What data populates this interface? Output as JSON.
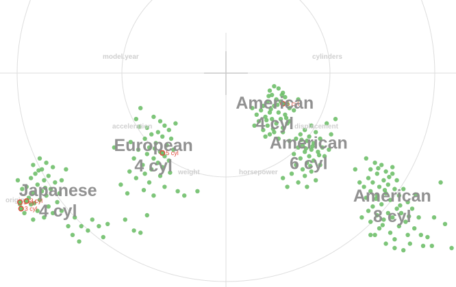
{
  "chart_data": {
    "type": "scatter",
    "colors": {
      "point": "#6fbf6a",
      "highlight": "#e04b3c",
      "ring": "#dddddd",
      "axis": "#c8c8c8",
      "label": "#8c8c8c",
      "axis_label": "#cfcfcf"
    },
    "axis_labels": [
      "model.year",
      "cylinders",
      "acceleration",
      "displacement",
      "weight",
      "horsepower",
      "origin"
    ],
    "clusters": [
      {
        "name": "American\n4 cyl",
        "label_lines": [
          "American",
          "4 cyl"
        ],
        "points": [
          [
            2.2,
            3.4
          ],
          [
            2.4,
            3.3
          ],
          [
            2.0,
            3.2
          ],
          [
            2.6,
            3.1
          ],
          [
            2.1,
            3.0
          ],
          [
            2.7,
            2.9
          ],
          [
            2.3,
            2.8
          ],
          [
            1.9,
            2.7
          ],
          [
            2.5,
            2.7
          ],
          [
            2.8,
            2.6
          ],
          [
            1.7,
            2.5
          ],
          [
            2.2,
            2.5
          ],
          [
            2.9,
            2.4
          ],
          [
            1.6,
            2.3
          ],
          [
            2.0,
            2.2
          ],
          [
            2.4,
            2.2
          ],
          [
            2.7,
            2.1
          ],
          [
            1.8,
            2.0
          ],
          [
            2.1,
            1.9
          ],
          [
            2.5,
            1.9
          ],
          [
            1.5,
            1.8
          ],
          [
            2.3,
            1.7
          ],
          [
            2.8,
            1.7
          ],
          [
            1.9,
            1.6
          ],
          [
            2.6,
            1.5
          ],
          [
            1.7,
            1.4
          ],
          [
            2.2,
            1.3
          ],
          [
            2.0,
            1.2
          ],
          [
            1.8,
            1.1
          ],
          [
            2.4,
            1.0
          ],
          [
            2.6,
            1.3
          ],
          [
            2.9,
            1.8
          ],
          [
            1.4,
            2.1
          ],
          [
            3.1,
            2.3
          ],
          [
            1.3,
            1.6
          ],
          [
            2.35,
            2.55
          ],
          [
            2.05,
            2.35
          ],
          [
            1.85,
            1.85
          ],
          [
            2.75,
            1.95
          ],
          [
            2.15,
            1.45
          ],
          [
            3.3,
            2.8
          ],
          [
            1.2,
            2.4
          ],
          [
            2.55,
            3.0
          ],
          [
            1.95,
            2.95
          ]
        ],
        "highlight": {
          "text": "5 cyl",
          "point": [
            2.6,
            2.6
          ]
        }
      },
      {
        "name": "European\n4 cyl",
        "label_lines": [
          "European",
          "4 cyl"
        ],
        "points": [
          [
            -3.9,
            2.4
          ],
          [
            -4.1,
            1.9
          ],
          [
            -3.3,
            2.0
          ],
          [
            -3.0,
            1.8
          ],
          [
            -3.6,
            1.5
          ],
          [
            -2.8,
            1.6
          ],
          [
            -3.1,
            1.3
          ],
          [
            -2.6,
            1.4
          ],
          [
            -3.4,
            1.2
          ],
          [
            -2.9,
            1.1
          ],
          [
            -3.7,
            1.0
          ],
          [
            -2.5,
            1.0
          ],
          [
            -3.2,
            0.8
          ],
          [
            -2.7,
            0.7
          ],
          [
            -3.5,
            0.6
          ],
          [
            -4.0,
            0.5
          ],
          [
            -2.4,
            0.5
          ],
          [
            -3.0,
            0.4
          ],
          [
            -3.6,
            0.3
          ],
          [
            -2.8,
            0.2
          ],
          [
            -3.3,
            0.1
          ],
          [
            -4.2,
            0.1
          ],
          [
            -2.6,
            0.0
          ],
          [
            -3.1,
            -0.1
          ],
          [
            -3.8,
            -0.2
          ],
          [
            -2.9,
            -0.3
          ],
          [
            -3.4,
            -0.4
          ],
          [
            -4.4,
            -0.5
          ],
          [
            -3.7,
            -0.6
          ],
          [
            -3.0,
            -0.7
          ],
          [
            -4.1,
            -0.8
          ],
          [
            -3.5,
            -1.0
          ],
          [
            -4.5,
            -1.5
          ],
          [
            -3.3,
            -1.6
          ],
          [
            -2.2,
            -1.4
          ],
          [
            -2.8,
            -1.2
          ],
          [
            -1.3,
            -1.4
          ],
          [
            -1.9,
            -1.6
          ],
          [
            -3.95,
            1.55
          ],
          [
            -4.35,
            0.85
          ],
          [
            -3.25,
            0.55
          ],
          [
            -2.55,
            -0.55
          ],
          [
            -4.8,
            -1.1
          ],
          [
            -5.1,
            0.6
          ],
          [
            -3.75,
            -1.35
          ],
          [
            -2.3,
            1.7
          ]
        ],
        "highlight": {
          "text": "5 cyl",
          "point": [
            -2.9,
            0.35
          ]
        }
      },
      {
        "name": "American\n6 cyl",
        "label_lines": [
          "American",
          "6 cyl"
        ],
        "points": [
          [
            3.9,
            1.6
          ],
          [
            3.6,
            1.4
          ],
          [
            4.1,
            1.3
          ],
          [
            3.4,
            1.2
          ],
          [
            3.8,
            1.1
          ],
          [
            4.3,
            1.0
          ],
          [
            3.2,
            1.0
          ],
          [
            3.7,
            0.9
          ],
          [
            4.0,
            0.8
          ],
          [
            3.5,
            0.7
          ],
          [
            4.4,
            0.6
          ],
          [
            3.3,
            0.6
          ],
          [
            3.9,
            0.5
          ],
          [
            3.6,
            0.4
          ],
          [
            4.2,
            0.4
          ],
          [
            3.1,
            0.3
          ],
          [
            3.8,
            0.2
          ],
          [
            4.5,
            0.2
          ],
          [
            3.4,
            0.1
          ],
          [
            4.0,
            0.0
          ],
          [
            3.7,
            -0.1
          ],
          [
            3.2,
            -0.2
          ],
          [
            4.3,
            -0.2
          ],
          [
            3.5,
            -0.4
          ],
          [
            3.9,
            -0.5
          ],
          [
            3.0,
            -0.6
          ],
          [
            3.6,
            -0.7
          ],
          [
            4.1,
            -0.9
          ],
          [
            3.3,
            -1.0
          ],
          [
            3.7,
            -1.2
          ],
          [
            2.8,
            -1.2
          ],
          [
            4.6,
            1.7
          ],
          [
            5.0,
            1.9
          ],
          [
            4.8,
            1.2
          ],
          [
            3.95,
            0.65
          ],
          [
            3.45,
            0.95
          ],
          [
            4.25,
            0.25
          ],
          [
            3.65,
            0.55
          ],
          [
            3.85,
            -0.25
          ],
          [
            2.9,
            0.9
          ],
          [
            4.7,
            0.5
          ],
          [
            2.6,
            -0.8
          ]
        ]
      },
      {
        "name": "Japanese\n4 cyl",
        "label_lines": [
          "Japanese",
          "4 cyl"
        ],
        "points": [
          [
            -8.5,
            0.1
          ],
          [
            -8.2,
            -0.1
          ],
          [
            -8.8,
            -0.2
          ],
          [
            -7.9,
            -0.3
          ],
          [
            -8.4,
            -0.4
          ],
          [
            -8.7,
            -0.6
          ],
          [
            -8.1,
            -0.7
          ],
          [
            -8.9,
            -0.8
          ],
          [
            -8.3,
            -0.9
          ],
          [
            -7.8,
            -1.0
          ],
          [
            -8.6,
            -1.1
          ],
          [
            -9.1,
            -1.2
          ],
          [
            -8.0,
            -1.3
          ],
          [
            -8.4,
            -1.4
          ],
          [
            -8.8,
            -1.5
          ],
          [
            -9.3,
            -1.3
          ],
          [
            -7.6,
            -1.5
          ],
          [
            -8.2,
            -1.6
          ],
          [
            -9.0,
            -1.7
          ],
          [
            -8.5,
            -1.8
          ],
          [
            -7.7,
            -1.9
          ],
          [
            -8.9,
            -2.0
          ],
          [
            -8.1,
            -2.1
          ],
          [
            -9.4,
            -2.0
          ],
          [
            -8.6,
            -2.3
          ],
          [
            -7.9,
            -2.4
          ],
          [
            -9.2,
            -2.4
          ],
          [
            -8.3,
            -2.6
          ],
          [
            -8.8,
            -2.7
          ],
          [
            -7.5,
            -2.3
          ],
          [
            -7.3,
            -0.4
          ],
          [
            -7.5,
            -0.9
          ],
          [
            -9.5,
            -0.9
          ],
          [
            -8.55,
            -0.45
          ],
          [
            -8.25,
            -1.25
          ],
          [
            -8.75,
            -1.95
          ],
          [
            -6.9,
            -2.6
          ],
          [
            -6.6,
            -3.0
          ],
          [
            -6.3,
            -3.2
          ],
          [
            -7.0,
            -3.4
          ],
          [
            -6.7,
            -3.7
          ],
          [
            -5.8,
            -3.0
          ],
          [
            -5.4,
            -2.9
          ],
          [
            -5.6,
            -3.5
          ],
          [
            -6.1,
            -2.7
          ],
          [
            -7.2,
            -3.0
          ],
          [
            -4.6,
            -2.7
          ],
          [
            -4.2,
            -3.2
          ],
          [
            -3.9,
            -3.3
          ],
          [
            -3.6,
            -2.5
          ]
        ],
        "highlights": [
          {
            "text": "3 cyl",
            "point": [
              -9.4,
              -1.9
            ]
          },
          {
            "text": "3 cyl",
            "point": [
              -9.1,
              -1.85
            ]
          },
          {
            "text": "3 cyl",
            "point": [
              -9.35,
              -2.2
            ]
          }
        ]
      },
      {
        "name": "American\n8 cyl",
        "label_lines": [
          "American",
          "8 cyl"
        ],
        "points": [
          [
            6.4,
            0.1
          ],
          [
            6.8,
            -0.1
          ],
          [
            7.1,
            -0.2
          ],
          [
            6.6,
            -0.4
          ],
          [
            7.3,
            -0.5
          ],
          [
            6.9,
            -0.6
          ],
          [
            7.6,
            -0.6
          ],
          [
            6.5,
            -0.8
          ],
          [
            7.2,
            -0.9
          ],
          [
            7.8,
            -0.9
          ],
          [
            6.7,
            -1.0
          ],
          [
            7.4,
            -1.1
          ],
          [
            6.3,
            -1.2
          ],
          [
            7.0,
            -1.2
          ],
          [
            7.7,
            -1.3
          ],
          [
            8.1,
            -1.3
          ],
          [
            6.6,
            -1.4
          ],
          [
            7.3,
            -1.5
          ],
          [
            6.9,
            -1.6
          ],
          [
            7.9,
            -1.6
          ],
          [
            6.4,
            -1.7
          ],
          [
            7.5,
            -1.8
          ],
          [
            8.3,
            -1.9
          ],
          [
            7.1,
            -2.0
          ],
          [
            6.7,
            -2.1
          ],
          [
            7.8,
            -2.2
          ],
          [
            8.5,
            -2.2
          ],
          [
            6.5,
            -2.3
          ],
          [
            7.4,
            -2.4
          ],
          [
            8.0,
            -2.4
          ],
          [
            6.9,
            -2.5
          ],
          [
            7.6,
            -2.6
          ],
          [
            8.8,
            -2.6
          ],
          [
            7.2,
            -2.7
          ],
          [
            6.6,
            -2.8
          ],
          [
            8.2,
            -2.8
          ],
          [
            7.9,
            -3.0
          ],
          [
            7.0,
            -3.1
          ],
          [
            8.6,
            -3.1
          ],
          [
            7.5,
            -3.3
          ],
          [
            8.3,
            -3.4
          ],
          [
            6.8,
            -3.4
          ],
          [
            8.9,
            -3.4
          ],
          [
            7.7,
            -3.6
          ],
          [
            9.2,
            -3.5
          ],
          [
            8.4,
            -3.8
          ],
          [
            7.3,
            -3.8
          ],
          [
            9.0,
            -3.9
          ],
          [
            8.1,
            -4.1
          ],
          [
            9.5,
            -2.6
          ],
          [
            10.0,
            -2.9
          ],
          [
            9.4,
            -3.9
          ],
          [
            7.45,
            -0.75
          ],
          [
            6.85,
            -1.75
          ],
          [
            7.95,
            -2.05
          ],
          [
            7.15,
            -2.95
          ],
          [
            8.65,
            -1.55
          ],
          [
            7.25,
            -1.35
          ],
          [
            6.95,
            -0.35
          ],
          [
            8.35,
            -2.55
          ],
          [
            5.9,
            -0.4
          ],
          [
            6.1,
            -1.0
          ],
          [
            6.6,
            -3.4
          ],
          [
            7.7,
            -4.0
          ],
          [
            9.8,
            -1.0
          ],
          [
            10.3,
            -4.0
          ],
          [
            7.6,
            -0.3
          ],
          [
            6.2,
            -2.6
          ]
        ]
      }
    ]
  }
}
